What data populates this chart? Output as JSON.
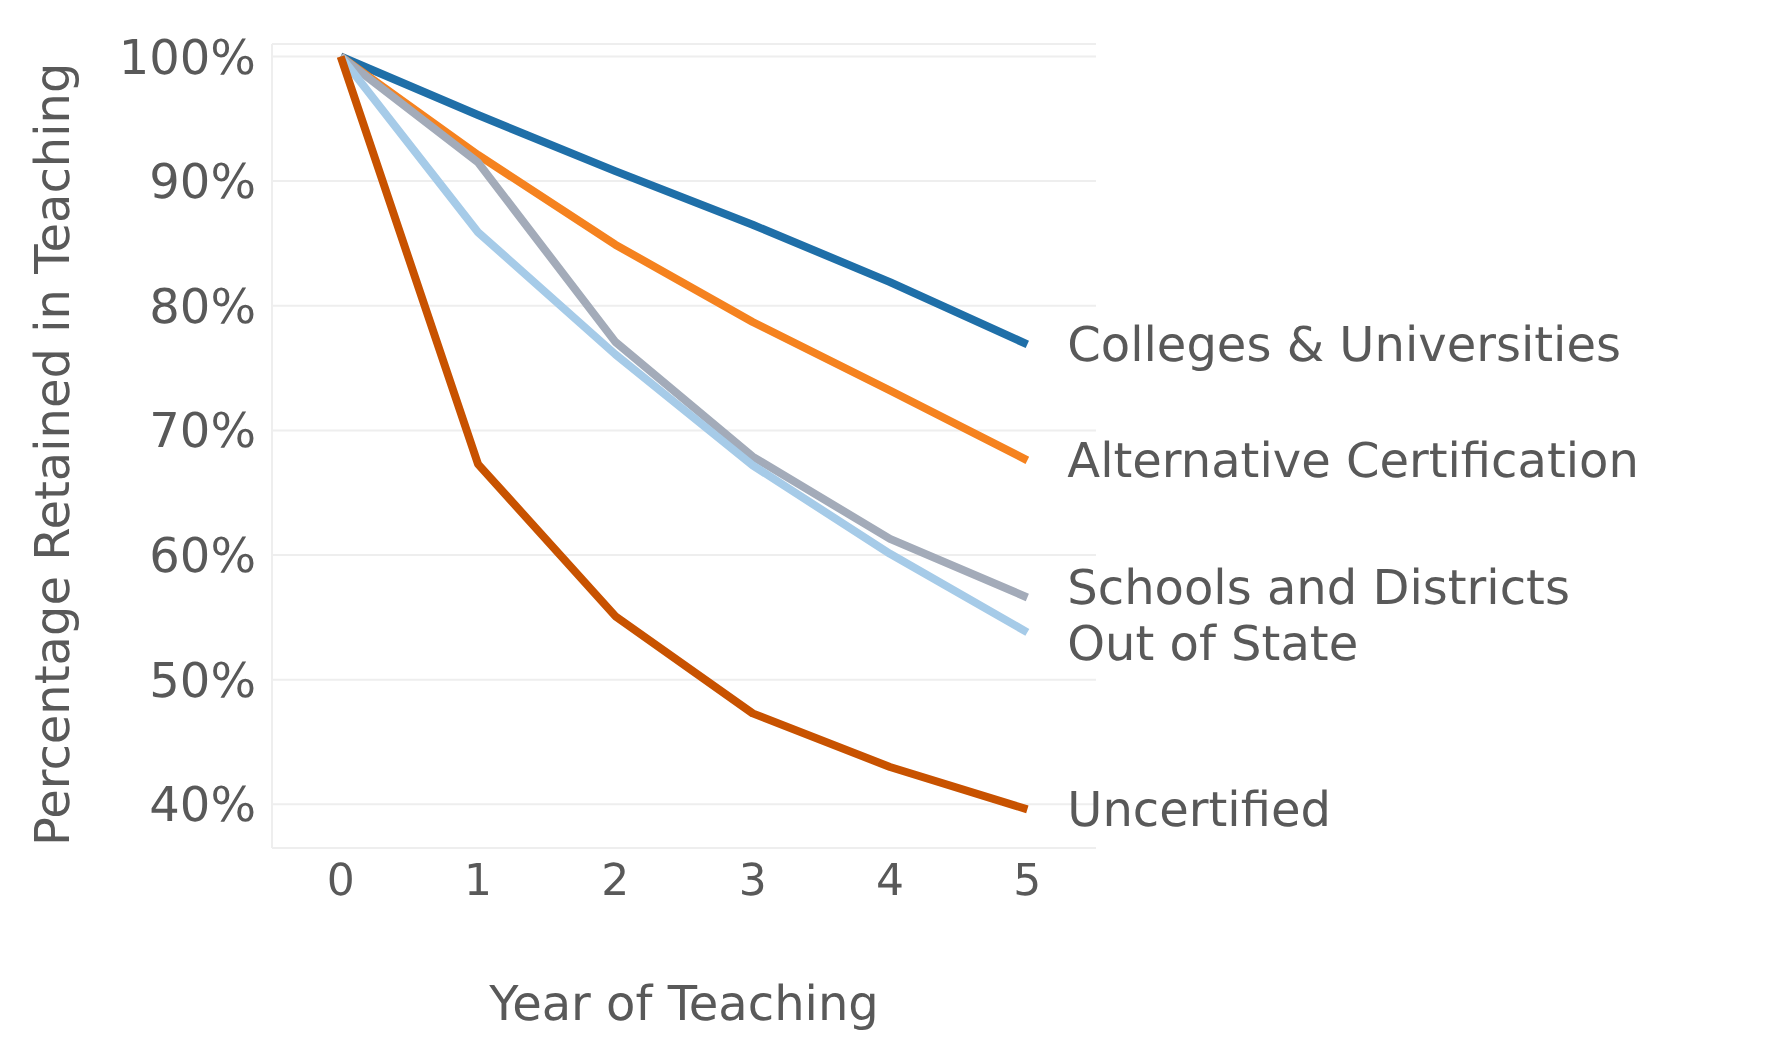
{
  "chart_data": {
    "type": "line",
    "xlabel": "Year of Teaching",
    "ylabel": "Percentage Retained in Teaching",
    "x": [
      0,
      1,
      2,
      3,
      4,
      5
    ],
    "series": [
      {
        "name": "Colleges & Universities",
        "color": "#1f6fa8",
        "values": [
          100,
          95.3,
          90.8,
          86.5,
          81.9,
          76.9
        ]
      },
      {
        "name": "Alternative Certification",
        "color": "#f5821f",
        "values": [
          100,
          92.1,
          84.9,
          78.7,
          73.2,
          67.6
        ]
      },
      {
        "name": "Schools and Districts",
        "color": "#a3abb9",
        "values": [
          100,
          91.5,
          77.1,
          67.9,
          61.3,
          56.6
        ]
      },
      {
        "name": "Out of State",
        "color": "#a6cbe8",
        "values": [
          100,
          85.9,
          76.1,
          67.2,
          60.1,
          53.8
        ]
      },
      {
        "name": "Uncertified",
        "color": "#c85200",
        "values": [
          100,
          67.3,
          55.1,
          47.3,
          43.0,
          39.6
        ]
      }
    ],
    "xlim": [
      -0.5,
      5.5
    ],
    "xticks": [
      0,
      1,
      2,
      3,
      4,
      5
    ],
    "ylim": [
      36.5,
      101
    ],
    "yticks": [
      {
        "value": 40,
        "label": "40%"
      },
      {
        "value": 50,
        "label": "50%"
      },
      {
        "value": 60,
        "label": "60%"
      },
      {
        "value": 70,
        "label": "70%"
      },
      {
        "value": 80,
        "label": "80%"
      },
      {
        "value": 90,
        "label": "90%"
      },
      {
        "value": 100,
        "label": "100%"
      }
    ],
    "grid": "y",
    "legend": false,
    "marker": "none",
    "line_style": "solid"
  }
}
